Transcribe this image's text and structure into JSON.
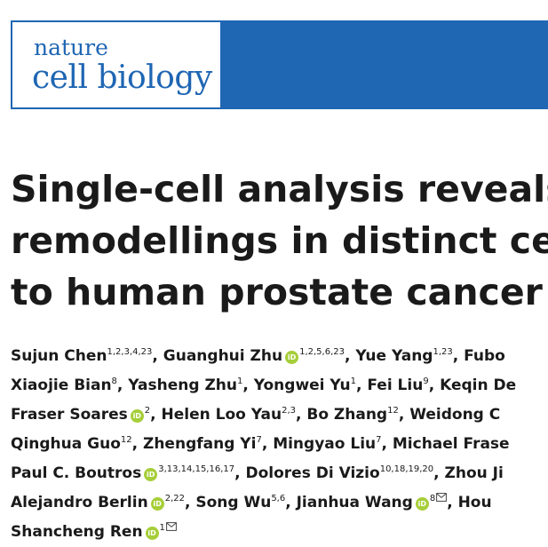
{
  "journal": {
    "logo_line1": "nature",
    "logo_line2": "cell biology",
    "banner_color": "#1f66b3"
  },
  "title": {
    "lines": [
      "Single-cell analysis reveals tr",
      "remodellings in distinct cell ty",
      "to human prostate cancer pro"
    ]
  },
  "authors": {
    "line1": {
      "a1": "Sujun Chen",
      "a1_sup": "1,2,3,4,23",
      "a2": ", Guanghui Zhu",
      "a2_sup": "1,2,5,6,23",
      "a3": ", Yue Yang",
      "a3_sup": "1,23",
      "a4": ", Fubo"
    },
    "line2": {
      "a1": "Xiaojie Bian",
      "a1_sup": "8",
      "a2": ", Yasheng Zhu",
      "a2_sup": "1",
      "a3": ", Yongwei Yu",
      "a3_sup": "1",
      "a4": ", Fei Liu",
      "a4_sup": "9",
      "a5": ", Keqin De"
    },
    "line3": {
      "a1": "Fraser Soares",
      "a1_sup": "2",
      "a2": ", Helen Loo Yau",
      "a2_sup": "2,3",
      "a3": ", Bo Zhang",
      "a3_sup": "12",
      "a4": ", Weidong C"
    },
    "line4": {
      "a1": "Qinghua Guo",
      "a1_sup": "12",
      "a2": ", Zhengfang Yi",
      "a2_sup": "7",
      "a3": ", Mingyao Liu",
      "a3_sup": "7",
      "a4": ", Michael Frase"
    },
    "line5": {
      "a1": "Paul C. Boutros",
      "a1_sup": "3,13,14,15,16,17",
      "a2": ", Dolores Di Vizio",
      "a2_sup": "10,18,19,20",
      "a3": ", Zhou Ji"
    },
    "line6": {
      "a1": "Alejandro Berlin",
      "a1_sup": "2,22",
      "a2": ", Song Wu",
      "a2_sup": "5,6",
      "a3": ", Jianhua Wang",
      "a3_sup": "8",
      "a4": ", Hou"
    },
    "line7": {
      "a1": "Shancheng Ren",
      "a1_sup": "1"
    },
    "orcid_label": "iD",
    "orcid_color": "#a6ce39"
  }
}
